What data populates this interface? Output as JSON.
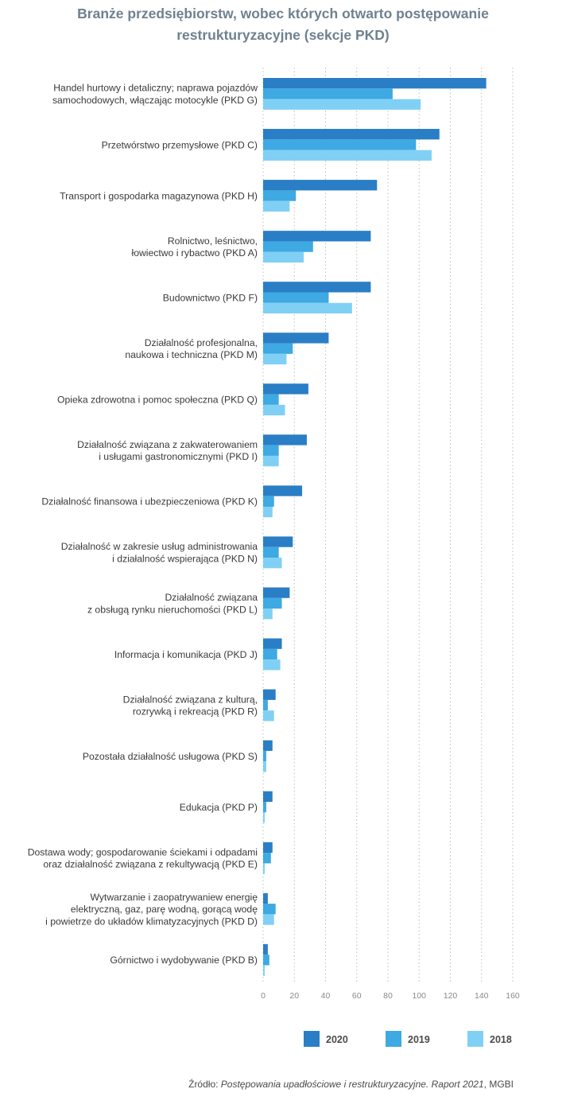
{
  "title": "Branże przedsiębiorstw, wobec których otwarto postępowanie restrukturyzacyjne (sekcje PKD)",
  "source": {
    "prefix": "Źródło: ",
    "publication": "Postępowania upadłościowe i restrukturyzacyjne. Raport 2021",
    "suffix": ", MGBI"
  },
  "chart_data": {
    "type": "bar",
    "orientation": "horizontal",
    "categories": [
      [
        "Handel hurtowy i detaliczny; naprawa pojazdów",
        "samochodowych, włączając motocykle (PKD G)"
      ],
      [
        "Przetwórstwo przemysłowe (PKD C)"
      ],
      [
        "Transport i gospodarka magazynowa (PKD H)"
      ],
      [
        "Rolnictwo, leśnictwo,",
        "łowiectwo i rybactwo (PKD A)"
      ],
      [
        "Budownictwo (PKD F)"
      ],
      [
        "Działalność profesjonalna,",
        "naukowa i techniczna (PKD M)"
      ],
      [
        "Opieka zdrowotna i pomoc społeczna (PKD Q)"
      ],
      [
        "Działalność związana z zakwaterowaniem",
        "i usługami gastronomicznymi (PKD I)"
      ],
      [
        "Działalność finansowa i ubezpieczeniowa (PKD K)"
      ],
      [
        "Działalność w zakresie usług administrowania",
        "i działalność wspierająca (PKD N)"
      ],
      [
        "Działalność związana",
        "z obsługą rynku nieruchomości (PKD L)"
      ],
      [
        "Informacja i komunikacja (PKD J)"
      ],
      [
        "Działalność związana z kulturą,",
        "rozrywką i rekreacją (PKD R)"
      ],
      [
        "Pozostała działalność usługowa (PKD S)"
      ],
      [
        "Edukacja (PKD P)"
      ],
      [
        "Dostawa wody; gospodarowanie ściekami i odpadami",
        "oraz działalność związana z rekultywacją (PKD E)"
      ],
      [
        "Wytwarzanie i zaopatrywaniew energię",
        "elektryczną, gaz, parę wodną, gorącą wodę",
        "i powietrze do układów klimatyzacyjnych (PKD D)"
      ],
      [
        "Górnictwo i wydobywanie (PKD B)"
      ]
    ],
    "series": [
      {
        "name": "2020",
        "color": "#2a7ec5",
        "values": [
          143,
          113,
          73,
          69,
          69,
          42,
          29,
          28,
          25,
          19,
          17,
          12,
          8,
          6,
          6,
          6,
          3,
          3
        ]
      },
      {
        "name": "2019",
        "color": "#3ea9e2",
        "values": [
          83,
          98,
          21,
          32,
          42,
          19,
          10,
          10,
          7,
          10,
          12,
          9,
          3,
          2,
          2,
          5,
          8,
          4
        ]
      },
      {
        "name": "2018",
        "color": "#80d0f5",
        "values": [
          101,
          108,
          17,
          26,
          57,
          15,
          14,
          10,
          6,
          12,
          6,
          11,
          7,
          2,
          1,
          1,
          7,
          1
        ]
      }
    ],
    "xlim": [
      0,
      160
    ],
    "xticks": [
      0,
      20,
      40,
      60,
      80,
      100,
      120,
      140,
      160
    ],
    "grid": "vertical dotted",
    "legend_position": "bottom"
  }
}
